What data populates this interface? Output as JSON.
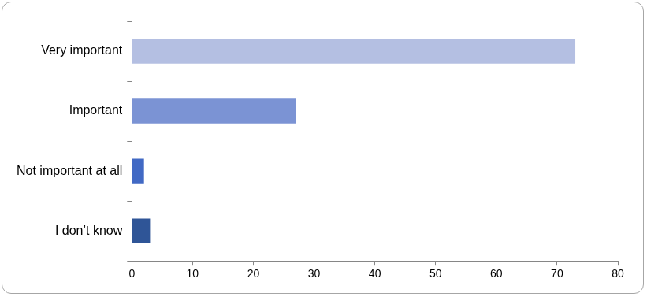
{
  "chart_data": {
    "type": "bar",
    "orientation": "horizontal",
    "categories": [
      "Very important",
      "Important",
      "Not important at all",
      "I don’t know"
    ],
    "values": [
      73,
      27,
      2,
      3
    ],
    "colors": [
      "#b4bfe2",
      "#7b93d4",
      "#4169c4",
      "#2f5597"
    ],
    "xlim": [
      0,
      80
    ],
    "xticks": [
      0,
      10,
      20,
      30,
      40,
      50,
      60,
      70,
      80
    ],
    "grid": false
  }
}
